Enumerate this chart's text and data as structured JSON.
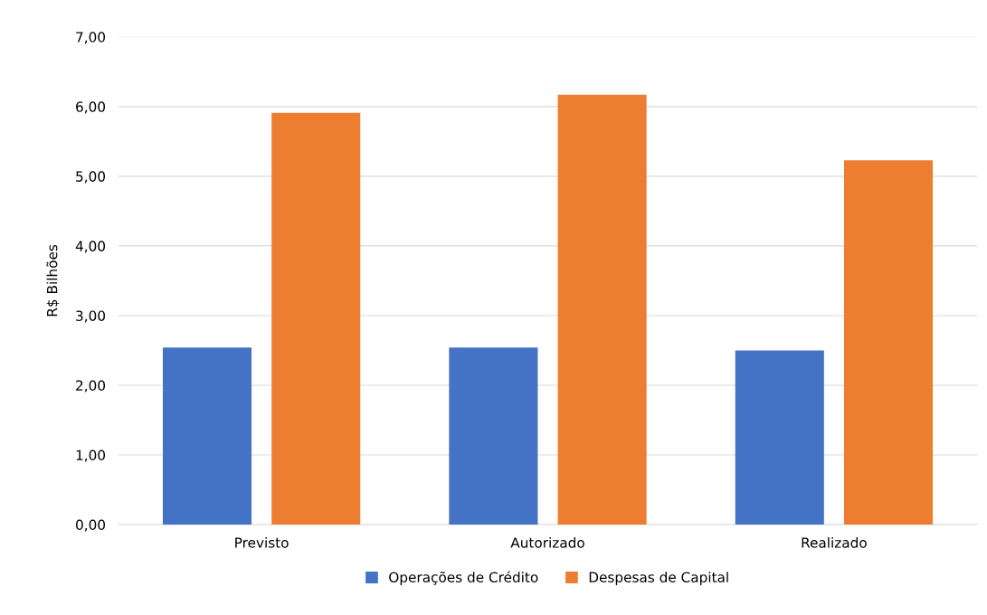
{
  "chart_data": {
    "type": "bar",
    "ylabel": "R$ Bilhões",
    "categories": [
      "Previsto",
      "Autorizado",
      "Realizado"
    ],
    "series": [
      {
        "name": "Operações de Crédito",
        "color": "#4472c4",
        "values": [
          2.54,
          2.54,
          2.5
        ]
      },
      {
        "name": "Despesas de Capital",
        "color": "#ed7d31",
        "values": [
          5.91,
          6.17,
          5.23
        ]
      }
    ],
    "ylim": [
      0,
      7
    ],
    "yticks": [
      {
        "value": 0,
        "label": "0,00"
      },
      {
        "value": 1,
        "label": "1,00"
      },
      {
        "value": 2,
        "label": "2,00"
      },
      {
        "value": 3,
        "label": "3,00"
      },
      {
        "value": 4,
        "label": "4,00"
      },
      {
        "value": 5,
        "label": "5,00"
      },
      {
        "value": 6,
        "label": "6,00"
      },
      {
        "value": 7,
        "label": "7,00"
      }
    ],
    "grid": "y",
    "legend": "bottom"
  }
}
